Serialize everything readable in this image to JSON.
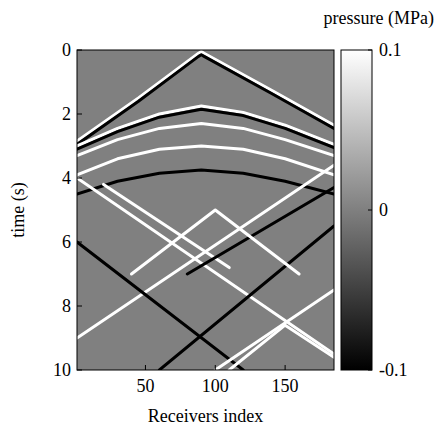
{
  "chart_data": {
    "type": "seismic",
    "x_label": "Receivers index",
    "y_label": "time (s)",
    "colorbar_label": "pressure (MPa)",
    "xlim": [
      1,
      185
    ],
    "xticks": [
      50,
      100,
      150
    ],
    "ylim": [
      0,
      10
    ],
    "yticks": [
      0,
      2,
      4,
      6,
      8,
      10
    ],
    "color_range": [
      -0.1,
      0.1
    ],
    "color_ticks": [
      -0.1,
      0,
      0.1
    ],
    "events": [
      {
        "x": [
          1,
          45,
          88,
          90,
          92,
          140,
          185
        ],
        "y": [
          2.85,
          1.5,
          0.1,
          0.05,
          0.1,
          1.25,
          2.35
        ],
        "value": 0.1
      },
      {
        "x": [
          1,
          45,
          88,
          90,
          92,
          140,
          185
        ],
        "y": [
          2.95,
          1.6,
          0.2,
          0.15,
          0.2,
          1.35,
          2.45
        ],
        "value": -0.1
      },
      {
        "x": [
          1,
          30,
          60,
          90,
          120,
          150,
          185
        ],
        "y": [
          3.0,
          2.45,
          2.0,
          1.75,
          1.95,
          2.35,
          2.95
        ],
        "value": 0.1
      },
      {
        "x": [
          1,
          30,
          60,
          90,
          120,
          150,
          185
        ],
        "y": [
          3.1,
          2.55,
          2.1,
          1.85,
          2.05,
          2.45,
          3.05
        ],
        "value": -0.1
      },
      {
        "x": [
          1,
          30,
          60,
          90,
          120,
          150,
          185
        ],
        "y": [
          3.3,
          2.8,
          2.45,
          2.3,
          2.45,
          2.8,
          3.3
        ],
        "value": 0.1
      },
      {
        "x": [
          1,
          30,
          60,
          90,
          120,
          150,
          185
        ],
        "y": [
          3.9,
          3.4,
          3.1,
          3.0,
          3.1,
          3.4,
          3.9
        ],
        "value": 0.1
      },
      {
        "x": [
          1,
          30,
          60,
          90,
          120,
          150,
          185
        ],
        "y": [
          4.5,
          4.1,
          3.85,
          3.75,
          3.85,
          4.1,
          4.5
        ],
        "value": -0.1
      },
      {
        "x": [
          1,
          185
        ],
        "y": [
          4.0,
          9.5
        ],
        "value": 0.1
      },
      {
        "x": [
          1,
          185
        ],
        "y": [
          9.0,
          3.6
        ],
        "value": 0.1
      },
      {
        "x": [
          1,
          120
        ],
        "y": [
          6.0,
          10.0
        ],
        "value": -0.1
      },
      {
        "x": [
          60,
          185
        ],
        "y": [
          10.0,
          5.5
        ],
        "value": -0.1
      },
      {
        "x": [
          20,
          110
        ],
        "y": [
          4.2,
          6.8
        ],
        "value": 0.1
      },
      {
        "x": [
          80,
          185
        ],
        "y": [
          7.0,
          4.3
        ],
        "value": -0.1
      },
      {
        "x": [
          40,
          100,
          160
        ],
        "y": [
          7.0,
          5.0,
          7.0
        ],
        "value": 0.1
      },
      {
        "x": [
          110,
          150,
          185
        ],
        "y": [
          10.0,
          8.6,
          9.6
        ],
        "value": 0.1
      },
      {
        "x": [
          100,
          185
        ],
        "y": [
          10.0,
          7.5
        ],
        "value": 0.1
      }
    ]
  }
}
